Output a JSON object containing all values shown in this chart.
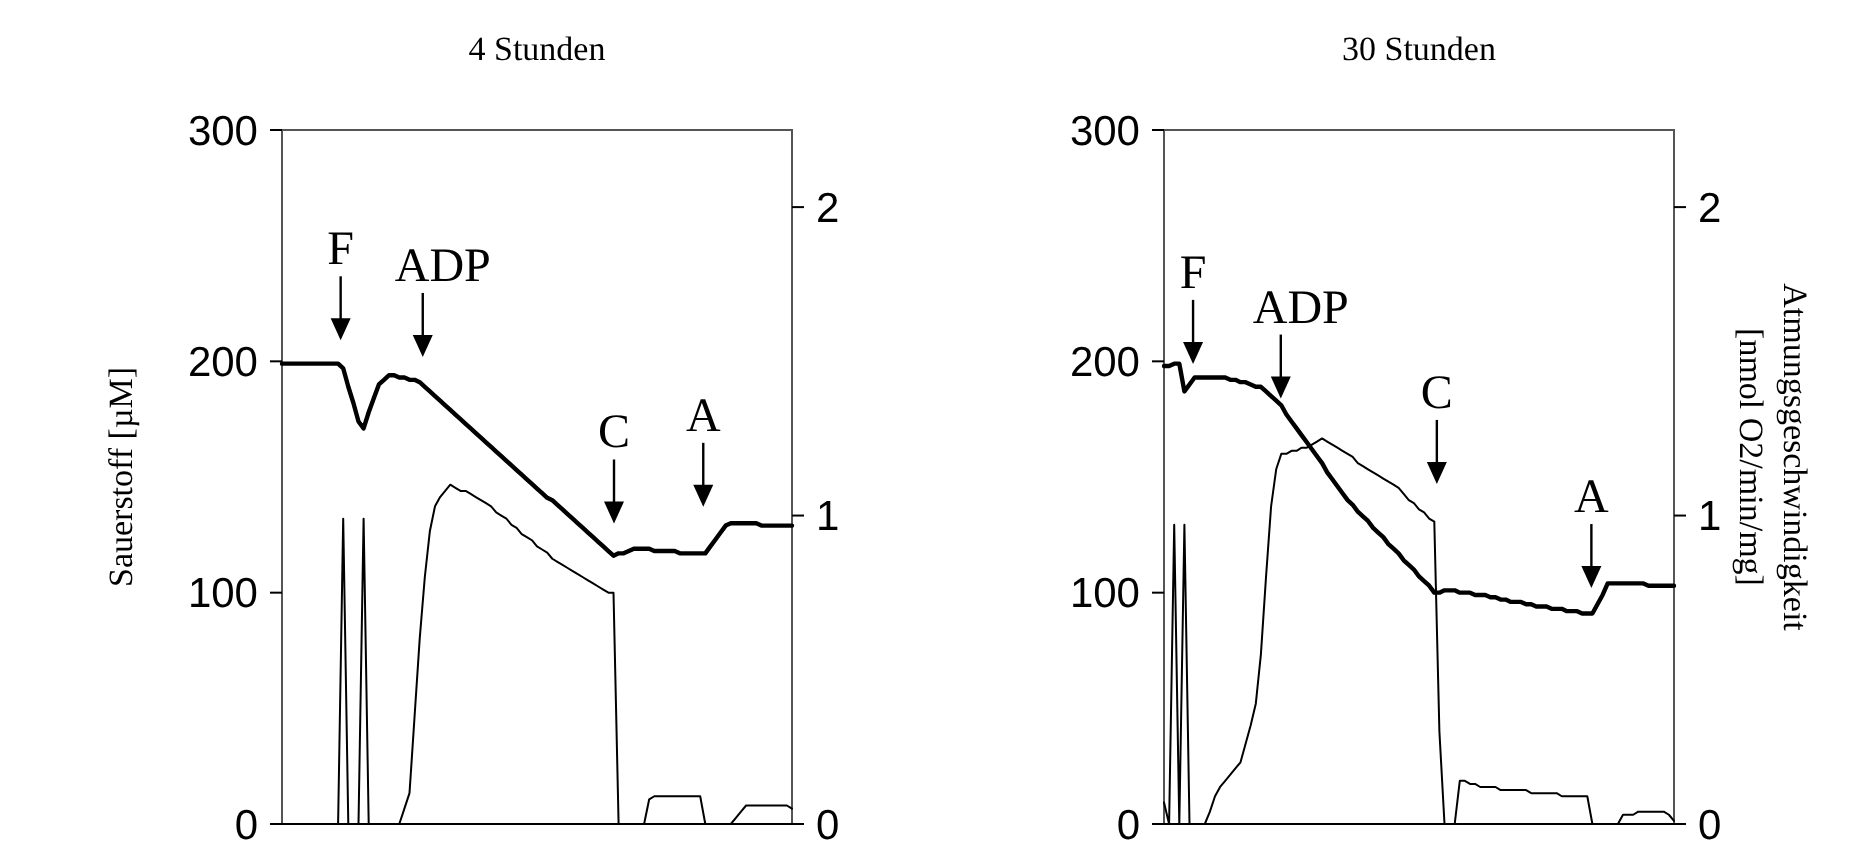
{
  "chart_data": [
    {
      "type": "line",
      "title": "4 Stunden",
      "ylabel": "Sauerstoff [µM]",
      "ylim": [
        0,
        300
      ],
      "yticks": [
        0,
        100,
        200,
        300
      ],
      "y2lim": [
        0,
        2.25
      ],
      "y2ticks": [
        0,
        1,
        2
      ],
      "categories": [
        null,
        null,
        null,
        null,
        null,
        null,
        null,
        null,
        null,
        null,
        null,
        null,
        null,
        null,
        null,
        null,
        null,
        null,
        null,
        null,
        null,
        null,
        null,
        null,
        null,
        null,
        null,
        null,
        null,
        null,
        null,
        null,
        null,
        null,
        null,
        null,
        null,
        null,
        null,
        null,
        null,
        null,
        null,
        null,
        null,
        null,
        null,
        null,
        null,
        null,
        null,
        null,
        null,
        null,
        null,
        null,
        null,
        null,
        null,
        null,
        null,
        null,
        null,
        null,
        null,
        null,
        null,
        null,
        null,
        null,
        null,
        null,
        null,
        null,
        null,
        null,
        null,
        null,
        null,
        null,
        null,
        null,
        null,
        null,
        null,
        null,
        null,
        null,
        null,
        null,
        null,
        null,
        null,
        null,
        null,
        null,
        null,
        null,
        null,
        null,
        null
      ],
      "series": [
        {
          "color": "#000000",
          "values": [
            199,
            199,
            199,
            199,
            199,
            199,
            199,
            199,
            199,
            199,
            199,
            199,
            197,
            189,
            182,
            174,
            171,
            178,
            184,
            190,
            192,
            194,
            194,
            193,
            193,
            192,
            192,
            191,
            189,
            187,
            185,
            183,
            181,
            179,
            177,
            175,
            173,
            171,
            169,
            167,
            165,
            163,
            161,
            159,
            157,
            155,
            153,
            151,
            149,
            147,
            145,
            143,
            141,
            140,
            138,
            136,
            134,
            132,
            130,
            128,
            126,
            124,
            122,
            120,
            118,
            116,
            117,
            117,
            118,
            119,
            119,
            119,
            119,
            118,
            118,
            118,
            118,
            118,
            117,
            117,
            117,
            117,
            117,
            117,
            120,
            123,
            126,
            129,
            130,
            130,
            130,
            130,
            130,
            130,
            129,
            129,
            129,
            129,
            129,
            129,
            129
          ]
        },
        {
          "color": "#000000",
          "axis": "y2",
          "values": [
            0,
            0,
            0,
            0,
            0,
            0,
            0,
            0,
            0,
            0,
            0,
            0,
            0.99,
            0,
            0,
            0,
            0.99,
            0,
            0,
            0,
            0,
            0,
            0,
            0,
            0.05,
            0.1,
            0.35,
            0.6,
            0.8,
            0.95,
            1.03,
            1.06,
            1.08,
            1.1,
            1.09,
            1.08,
            1.08,
            1.07,
            1.06,
            1.05,
            1.04,
            1.03,
            1.01,
            1,
            0.99,
            0.97,
            0.96,
            0.94,
            0.93,
            0.92,
            0.9,
            0.89,
            0.88,
            0.86,
            0.85,
            0.84,
            0.83,
            0.82,
            0.81,
            0.8,
            0.79,
            0.78,
            0.77,
            0.76,
            0.75,
            0.75,
            0,
            0,
            0,
            0,
            0,
            0,
            0.08,
            0.09,
            0.09,
            0.09,
            0.09,
            0.09,
            0.09,
            0.09,
            0.09,
            0.09,
            0.09,
            0,
            0,
            0,
            0,
            0,
            0,
            0.02,
            0.04,
            0.06,
            0.06,
            0.06,
            0.06,
            0.06,
            0.06,
            0.06,
            0.06,
            0.06,
            0.05
          ]
        }
      ],
      "annotations": [
        "F",
        "ADP",
        "C",
        "A"
      ]
    },
    {
      "type": "line",
      "title": "30 Stunden",
      "y2label": "Atmungsgeschwindigkeit [nmol O2/min/mg]",
      "ylim": [
        0,
        300
      ],
      "yticks": [
        0,
        100,
        200,
        300
      ],
      "y2lim": [
        0,
        2.25
      ],
      "y2ticks": [
        0,
        1,
        2
      ],
      "categories": [
        null,
        null,
        null,
        null,
        null,
        null,
        null,
        null,
        null,
        null,
        null,
        null,
        null,
        null,
        null,
        null,
        null,
        null,
        null,
        null,
        null,
        null,
        null,
        null,
        null,
        null,
        null,
        null,
        null,
        null,
        null,
        null,
        null,
        null,
        null,
        null,
        null,
        null,
        null,
        null,
        null,
        null,
        null,
        null,
        null,
        null,
        null,
        null,
        null,
        null,
        null,
        null,
        null,
        null,
        null,
        null,
        null,
        null,
        null,
        null,
        null,
        null,
        null,
        null,
        null,
        null,
        null,
        null,
        null,
        null,
        null,
        null,
        null,
        null,
        null,
        null,
        null,
        null,
        null,
        null,
        null,
        null,
        null,
        null,
        null,
        null,
        null,
        null,
        null,
        null,
        null,
        null,
        null,
        null,
        null,
        null,
        null,
        null,
        null,
        null,
        null
      ],
      "series": [
        {
          "color": "#000000",
          "values": [
            198,
            198,
            199,
            199,
            187,
            190,
            193,
            193,
            193,
            193,
            193,
            193,
            193,
            192,
            192,
            191,
            191,
            190,
            189,
            189,
            187,
            185,
            183,
            181,
            177,
            174,
            171,
            168,
            165,
            162,
            159,
            156,
            152,
            149,
            146,
            143,
            140,
            138,
            135,
            133,
            131,
            128,
            126,
            124,
            121,
            119,
            117,
            114,
            112,
            110,
            107,
            105,
            103,
            100,
            100,
            101,
            101,
            101,
            100,
            100,
            100,
            99,
            99,
            99,
            98,
            98,
            97,
            97,
            96,
            96,
            96,
            95,
            95,
            94,
            94,
            94,
            93,
            93,
            93,
            92,
            92,
            92,
            91,
            91,
            91,
            95,
            99,
            104,
            104,
            104,
            104,
            104,
            104,
            104,
            104,
            103,
            103,
            103,
            103,
            103,
            103
          ]
        },
        {
          "color": "#000000",
          "axis": "y2",
          "values": [
            0.07,
            0,
            0.97,
            0,
            0.97,
            0,
            0,
            0,
            0,
            0.04,
            0.09,
            0.12,
            0.14,
            0.16,
            0.18,
            0.2,
            0.26,
            0.32,
            0.39,
            0.55,
            0.8,
            1.03,
            1.15,
            1.2,
            1.2,
            1.21,
            1.21,
            1.22,
            1.22,
            1.23,
            1.24,
            1.25,
            1.24,
            1.23,
            1.22,
            1.21,
            1.2,
            1.19,
            1.17,
            1.16,
            1.15,
            1.14,
            1.13,
            1.12,
            1.11,
            1.1,
            1.09,
            1.07,
            1.05,
            1.04,
            1.02,
            1.01,
            0.99,
            0.98,
            0.3,
            0,
            0,
            0,
            0.14,
            0.14,
            0.13,
            0.13,
            0.12,
            0.12,
            0.12,
            0.12,
            0.11,
            0.11,
            0.11,
            0.11,
            0.11,
            0.11,
            0.1,
            0.1,
            0.1,
            0.1,
            0.1,
            0.1,
            0.09,
            0.09,
            0.09,
            0.09,
            0.09,
            0.09,
            0,
            0,
            0,
            0,
            0,
            0,
            0.03,
            0.03,
            0.03,
            0.04,
            0.04,
            0.04,
            0.04,
            0.04,
            0.04,
            0.03,
            0.01
          ]
        }
      ],
      "annotations": [
        "F",
        "ADP",
        "C",
        "A"
      ]
    }
  ]
}
